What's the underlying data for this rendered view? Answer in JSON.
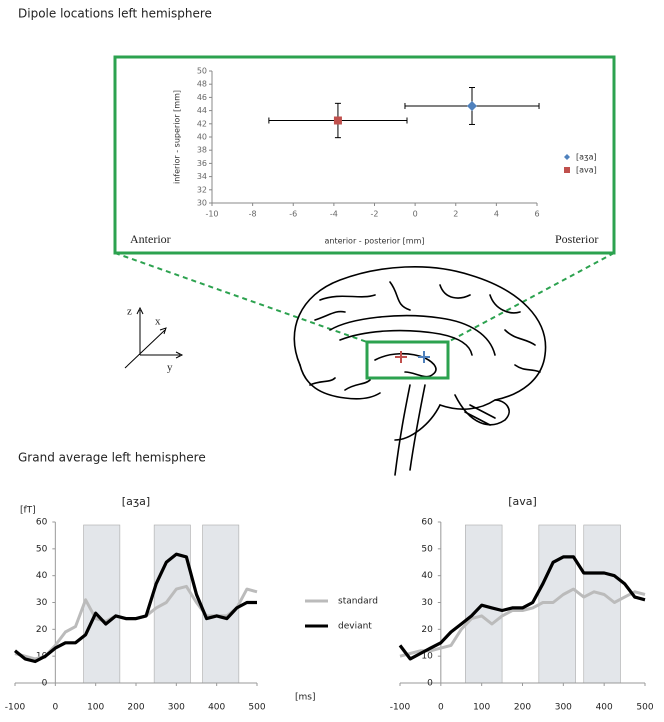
{
  "chart_data": [
    {
      "type": "errorbar_scatter",
      "title": "Dipole locations left hemisphere",
      "xlabel": "anterior - posterior [mm]",
      "ylabel": "inferior - superior [mm]",
      "xlim": [
        -10,
        6
      ],
      "xticks": [
        -10,
        -8,
        -6,
        -4,
        -2,
        0,
        2,
        4,
        6
      ],
      "ylim": [
        30,
        50
      ],
      "yticks": [
        30,
        32,
        34,
        36,
        38,
        40,
        42,
        44,
        46,
        48,
        50
      ],
      "annotations": [
        "Anterior",
        "Posterior"
      ],
      "series": [
        {
          "name": "[aʒa]",
          "color": "#4f81bd",
          "marker": "diamond",
          "x": [
            2.8
          ],
          "values": [
            44.7
          ],
          "xerr": [
            3.3
          ],
          "yerr": [
            2.8
          ]
        },
        {
          "name": "[ava]",
          "color": "#c0504d",
          "marker": "square",
          "x": [
            -3.8
          ],
          "values": [
            42.5
          ],
          "xerr": [
            3.4
          ],
          "yerr": [
            2.6
          ]
        }
      ]
    },
    {
      "type": "line",
      "heading": "Grand average left hemisphere",
      "title": "[aʒa]",
      "ylabel": "[fT]",
      "xlabel": "[ms]",
      "xlim": [
        -100,
        500
      ],
      "xticks": [
        -100,
        0,
        100,
        200,
        300,
        400,
        500
      ],
      "ylim": [
        0,
        60
      ],
      "yticks": [
        0,
        10,
        20,
        30,
        40,
        50,
        60
      ],
      "highlight_ranges": [
        [
          70,
          160
        ],
        [
          245,
          335
        ],
        [
          365,
          455
        ]
      ],
      "x": [
        -100,
        -75,
        -50,
        -25,
        0,
        25,
        50,
        75,
        100,
        125,
        150,
        175,
        200,
        225,
        250,
        275,
        300,
        325,
        350,
        375,
        400,
        425,
        450,
        475,
        500
      ],
      "series": [
        {
          "name": "standard",
          "color": "#bbbbbb",
          "values": [
            11,
            10,
            9,
            10,
            14,
            19,
            21,
            31,
            24,
            23,
            25,
            24,
            24,
            25,
            28,
            30,
            35,
            36,
            30,
            25,
            25,
            25,
            28,
            35,
            34
          ]
        },
        {
          "name": "deviant",
          "color": "#000000",
          "values": [
            12,
            9,
            8,
            10,
            13,
            15,
            15,
            18,
            26,
            22,
            25,
            24,
            24,
            25,
            37,
            45,
            48,
            47,
            33,
            24,
            25,
            24,
            28,
            30,
            30
          ]
        }
      ]
    },
    {
      "type": "line",
      "title": "[ava]",
      "xlim": [
        -100,
        500
      ],
      "xticks": [
        -100,
        0,
        100,
        200,
        300,
        400,
        500
      ],
      "ylim": [
        0,
        60
      ],
      "yticks": [
        0,
        10,
        20,
        30,
        40,
        50,
        60
      ],
      "highlight_ranges": [
        [
          60,
          150
        ],
        [
          240,
          330
        ],
        [
          350,
          440
        ]
      ],
      "x": [
        -100,
        -75,
        -50,
        -25,
        0,
        25,
        50,
        75,
        100,
        125,
        150,
        175,
        200,
        225,
        250,
        275,
        300,
        325,
        350,
        375,
        400,
        425,
        450,
        475,
        500
      ],
      "series": [
        {
          "color": "#bbbbbb",
          "values": [
            10,
            11,
            12,
            12,
            13,
            14,
            20,
            24,
            25,
            22,
            25,
            27,
            27,
            28,
            30,
            30,
            33,
            35,
            32,
            34,
            33,
            30,
            32,
            34,
            33
          ]
        },
        {
          "color": "#000000",
          "values": [
            14,
            9,
            11,
            13,
            15,
            19,
            22,
            25,
            29,
            28,
            27,
            28,
            28,
            30,
            37,
            45,
            47,
            47,
            41,
            41,
            41,
            40,
            37,
            32,
            31
          ]
        }
      ]
    }
  ],
  "orientation_axes": [
    "z",
    "x",
    "y"
  ]
}
